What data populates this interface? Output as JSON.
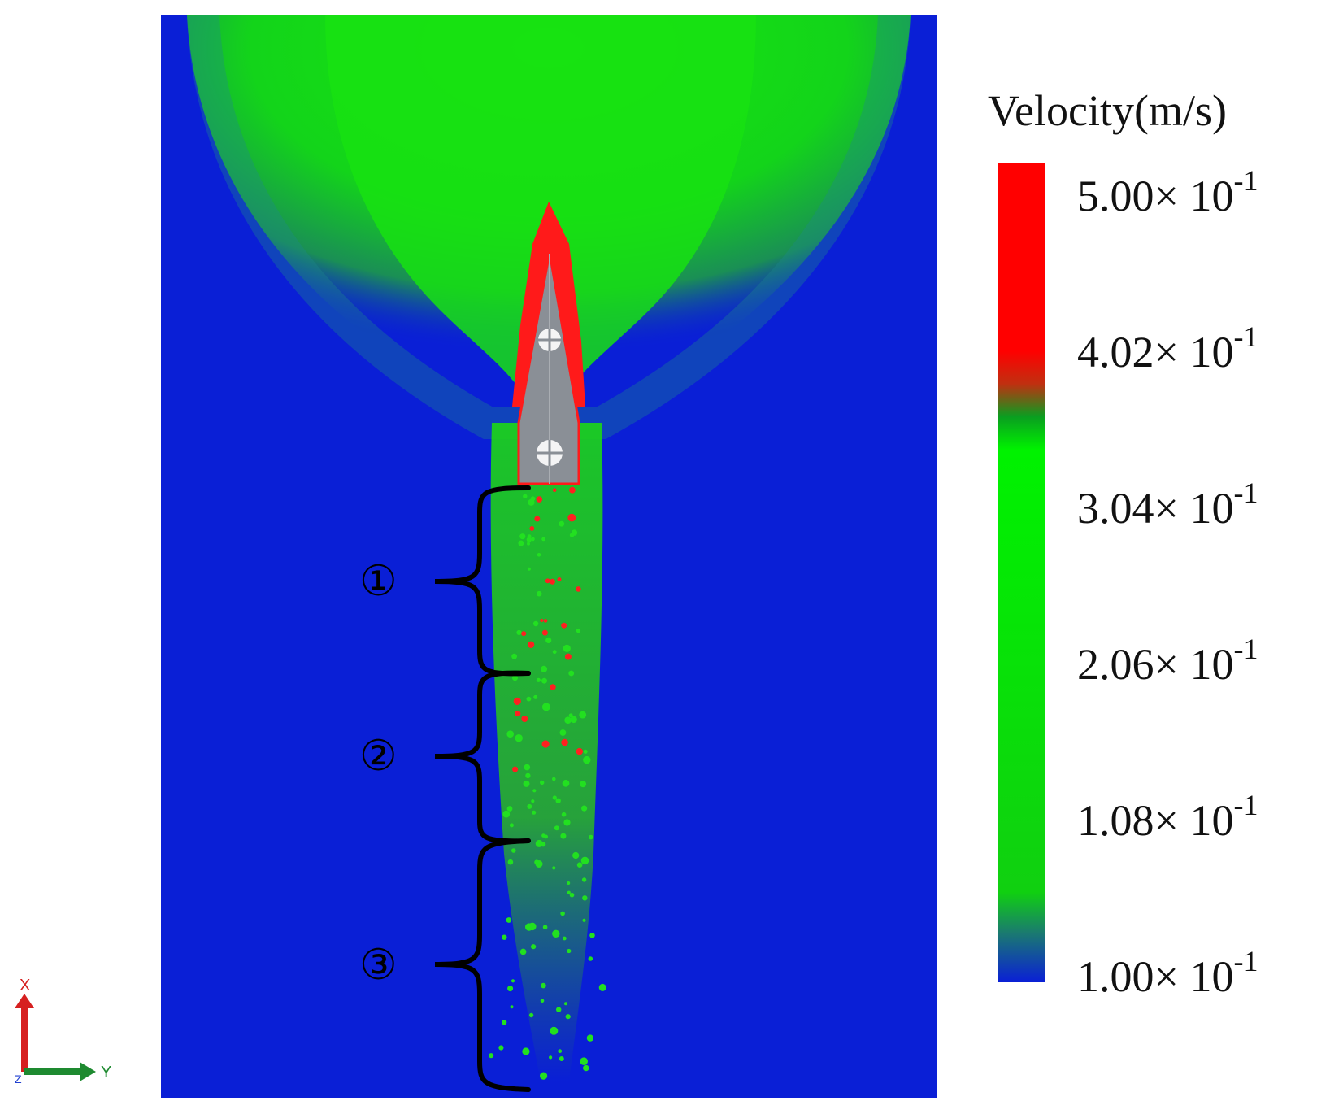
{
  "legend": {
    "title": "Velocity(m/s)",
    "ticks": [
      {
        "mantissa": "5.00",
        "times": "×",
        "base": "10",
        "exp": "-1"
      },
      {
        "mantissa": "4.02",
        "times": "×",
        "base": "10",
        "exp": "-1"
      },
      {
        "mantissa": "3.04",
        "times": "×",
        "base": "10",
        "exp": "-1"
      },
      {
        "mantissa": "2.06",
        "times": "×",
        "base": "10",
        "exp": "-1"
      },
      {
        "mantissa": "1.08",
        "times": "×",
        "base": "10",
        "exp": "-1"
      },
      {
        "mantissa": "1.00",
        "times": "×",
        "base": "10",
        "exp": "-1"
      }
    ],
    "colors": {
      "high": "#ff0000",
      "mid": "#00ee00",
      "low": "#0a1fd6"
    }
  },
  "zones": [
    "①",
    "②",
    "③"
  ],
  "axes": {
    "x_label": "X",
    "y_label": "Y",
    "z_label": "Z"
  }
}
